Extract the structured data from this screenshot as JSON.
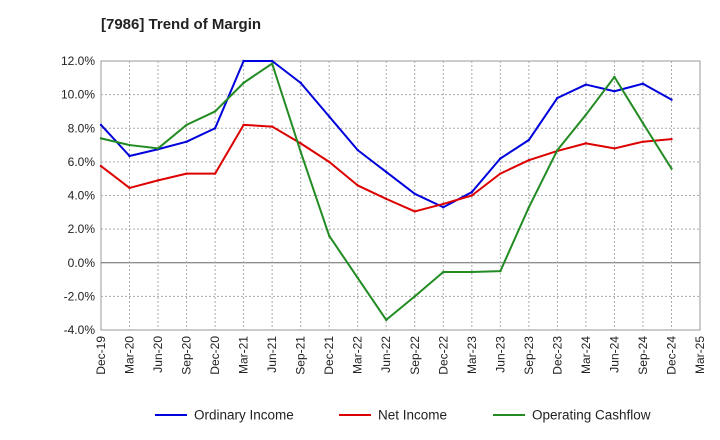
{
  "chart_data": {
    "type": "line",
    "title": "[7986]  Trend of Margin",
    "xlabel": "",
    "ylabel": "",
    "x": [
      "Dec-19",
      "Mar-20",
      "Jun-20",
      "Sep-20",
      "Dec-20",
      "Mar-21",
      "Jun-21",
      "Sep-21",
      "Dec-21",
      "Mar-22",
      "Jun-22",
      "Sep-22",
      "Dec-22",
      "Mar-23",
      "Jun-23",
      "Sep-23",
      "Dec-23",
      "Mar-24",
      "Jun-24",
      "Sep-24",
      "Dec-24",
      "Mar-25"
    ],
    "ylim": [
      -4.0,
      12.0
    ],
    "yticks": [
      "-4.0%",
      "-2.0%",
      "0.0%",
      "2.0%",
      "4.0%",
      "6.0%",
      "8.0%",
      "10.0%",
      "12.0%"
    ],
    "grid": true,
    "legend_position": "bottom",
    "series": [
      {
        "name": "Ordinary Income",
        "color": "#0000dd",
        "values": [
          8.2,
          6.35,
          6.75,
          7.2,
          8.0,
          12.0,
          12.0,
          10.7,
          8.7,
          6.7,
          5.4,
          4.1,
          3.3,
          4.2,
          6.2,
          7.3,
          9.8,
          10.6,
          10.2,
          10.65,
          9.7,
          null
        ]
      },
      {
        "name": "Net Income",
        "color": "#dd0000",
        "values": [
          5.75,
          4.45,
          4.9,
          5.3,
          5.3,
          8.2,
          8.1,
          7.1,
          6.0,
          4.6,
          3.8,
          3.05,
          3.5,
          4.0,
          5.3,
          6.1,
          6.65,
          7.1,
          6.8,
          7.2,
          7.35,
          null
        ]
      },
      {
        "name": "Operating Cashflow",
        "color": "#228b22",
        "values": [
          7.4,
          7.0,
          6.8,
          8.2,
          9.0,
          10.7,
          11.85,
          6.6,
          1.6,
          -0.9,
          -3.4,
          -2.0,
          -0.55,
          -0.55,
          -0.5,
          3.3,
          6.7,
          8.8,
          11.05,
          8.3,
          5.6,
          null
        ]
      }
    ]
  }
}
